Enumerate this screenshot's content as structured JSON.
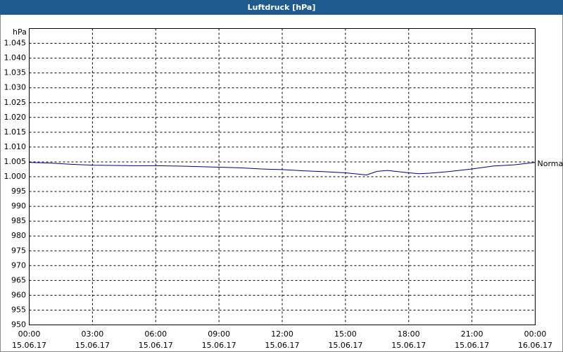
{
  "chart_data": {
    "type": "line",
    "title": "Luftdruck [hPa]",
    "y_label": "hPa",
    "x": [
      0,
      1,
      2,
      3,
      4,
      5,
      6,
      7,
      8,
      9,
      10,
      11,
      12,
      13,
      14,
      15,
      16,
      16.5,
      17,
      18,
      18.5,
      19,
      20,
      21,
      22,
      23,
      24
    ],
    "series": [
      {
        "name": "Normal",
        "color": "#000080",
        "values": [
          1004.8,
          1004.6,
          1004.2,
          1003.9,
          1003.8,
          1003.7,
          1003.7,
          1003.6,
          1003.4,
          1003.2,
          1003.0,
          1002.6,
          1002.4,
          1002.0,
          1001.7,
          1001.3,
          1000.6,
          1001.8,
          1002.1,
          1001.3,
          1001.0,
          1001.2,
          1001.8,
          1002.6,
          1003.6,
          1004.0,
          1004.8
        ]
      }
    ],
    "xlim": [
      0,
      24
    ],
    "xticks": [
      {
        "value": 0,
        "label": "00:00",
        "date": "15.06.17"
      },
      {
        "value": 3,
        "label": "03:00",
        "date": "15.06.17"
      },
      {
        "value": 6,
        "label": "06:00",
        "date": "15.06.17"
      },
      {
        "value": 9,
        "label": "09:00",
        "date": "15.06.17"
      },
      {
        "value": 12,
        "label": "12:00",
        "date": "15.06.17"
      },
      {
        "value": 15,
        "label": "15:00",
        "date": "15.06.17"
      },
      {
        "value": 18,
        "label": "18:00",
        "date": "15.06.17"
      },
      {
        "value": 21,
        "label": "21:00",
        "date": "15.06.17"
      },
      {
        "value": 24,
        "label": "00:00",
        "date": "16.06.17"
      }
    ],
    "ylim": [
      950,
      1050
    ],
    "yticks": [
      950,
      955,
      960,
      965,
      970,
      975,
      980,
      985,
      990,
      995,
      {
        "value": 1000,
        "label": "1.000"
      },
      {
        "value": 1005,
        "label": "1.005"
      },
      {
        "value": 1010,
        "label": "1.010"
      },
      {
        "value": 1015,
        "label": "1.015"
      },
      {
        "value": 1020,
        "label": "1.020"
      },
      {
        "value": 1025,
        "label": "1.025"
      },
      {
        "value": 1030,
        "label": "1.030"
      },
      {
        "value": 1035,
        "label": "1.035"
      },
      {
        "value": 1040,
        "label": "1.040"
      },
      {
        "value": 1045,
        "label": "1.045"
      }
    ],
    "grid": true
  }
}
